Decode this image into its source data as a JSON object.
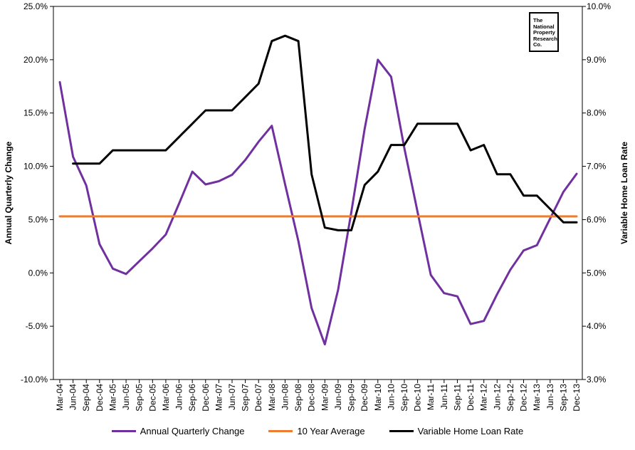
{
  "chart_data": {
    "type": "line",
    "categories": [
      "Mar-04",
      "Jun-04",
      "Sep-04",
      "Dec-04",
      "Mar-05",
      "Jun-05",
      "Sep-05",
      "Dec-05",
      "Mar-06",
      "Jun-06",
      "Sep-06",
      "Dec-06",
      "Mar-07",
      "Jun-07",
      "Sep-07",
      "Dec-07",
      "Mar-08",
      "Jun-08",
      "Sep-08",
      "Dec-08",
      "Mar-09",
      "Jun-09",
      "Sep-09",
      "Dec-09",
      "Mar-10",
      "Jun-10",
      "Sep-10",
      "Dec-10",
      "Mar-11",
      "Jun-11",
      "Sep-11",
      "Dec-11",
      "Mar-12",
      "Jun-12",
      "Sep-12",
      "Dec-12",
      "Mar-13",
      "Jun-13",
      "Sep-13",
      "Dec-13"
    ],
    "y_left": {
      "label": "Annual Quarterly Change",
      "min": -10,
      "max": 25,
      "step": 5,
      "ticks": [
        "-10.0%",
        "-5.0%",
        "0.0%",
        "5.0%",
        "10.0%",
        "15.0%",
        "20.0%",
        "25.0%"
      ]
    },
    "y_right": {
      "label": "Variable Home Loan Rate",
      "min": 3,
      "max": 10,
      "step": 1,
      "ticks": [
        "3.0%",
        "4.0%",
        "5.0%",
        "6.0%",
        "7.0%",
        "8.0%",
        "9.0%",
        "10.0%"
      ]
    },
    "series": [
      {
        "name": "Annual Quarterly Change",
        "axis": "left",
        "color": "#7030a0",
        "values": [
          17.9,
          10.9,
          8.2,
          2.7,
          0.4,
          -0.1,
          1.1,
          2.3,
          3.6,
          6.5,
          9.5,
          8.3,
          8.6,
          9.2,
          10.6,
          12.3,
          13.8,
          8.3,
          3.0,
          -3.3,
          -6.7,
          -1.6,
          5.7,
          13.5,
          20.0,
          18.4,
          11.7,
          5.7,
          -0.2,
          -1.9,
          -2.2,
          -4.8,
          -4.5,
          -2.0,
          0.3,
          2.1,
          2.6,
          5.1,
          7.6,
          9.3
        ]
      },
      {
        "name": "10 Year Average",
        "axis": "left",
        "color": "#ed7d31",
        "values": [
          5.3,
          5.3,
          5.3,
          5.3,
          5.3,
          5.3,
          5.3,
          5.3,
          5.3,
          5.3,
          5.3,
          5.3,
          5.3,
          5.3,
          5.3,
          5.3,
          5.3,
          5.3,
          5.3,
          5.3,
          5.3,
          5.3,
          5.3,
          5.3,
          5.3,
          5.3,
          5.3,
          5.3,
          5.3,
          5.3,
          5.3,
          5.3,
          5.3,
          5.3,
          5.3,
          5.3,
          5.3,
          5.3,
          5.3,
          5.3
        ]
      },
      {
        "name": "Variable Home Loan Rate",
        "axis": "right",
        "color": "#000000",
        "values": [
          null,
          7.05,
          7.05,
          7.05,
          7.3,
          7.3,
          7.3,
          7.3,
          7.3,
          7.55,
          7.8,
          8.05,
          8.05,
          8.05,
          8.3,
          8.55,
          9.35,
          9.45,
          9.35,
          6.85,
          5.85,
          5.8,
          5.8,
          6.65,
          6.9,
          7.4,
          7.4,
          7.8,
          7.8,
          7.8,
          7.8,
          7.3,
          7.4,
          6.85,
          6.85,
          6.45,
          6.45,
          6.2,
          5.95,
          5.95
        ]
      }
    ],
    "grid": false,
    "legend_position": "bottom"
  },
  "logo": {
    "lines": [
      "The",
      "National",
      "Property",
      "Research",
      "Co."
    ]
  }
}
